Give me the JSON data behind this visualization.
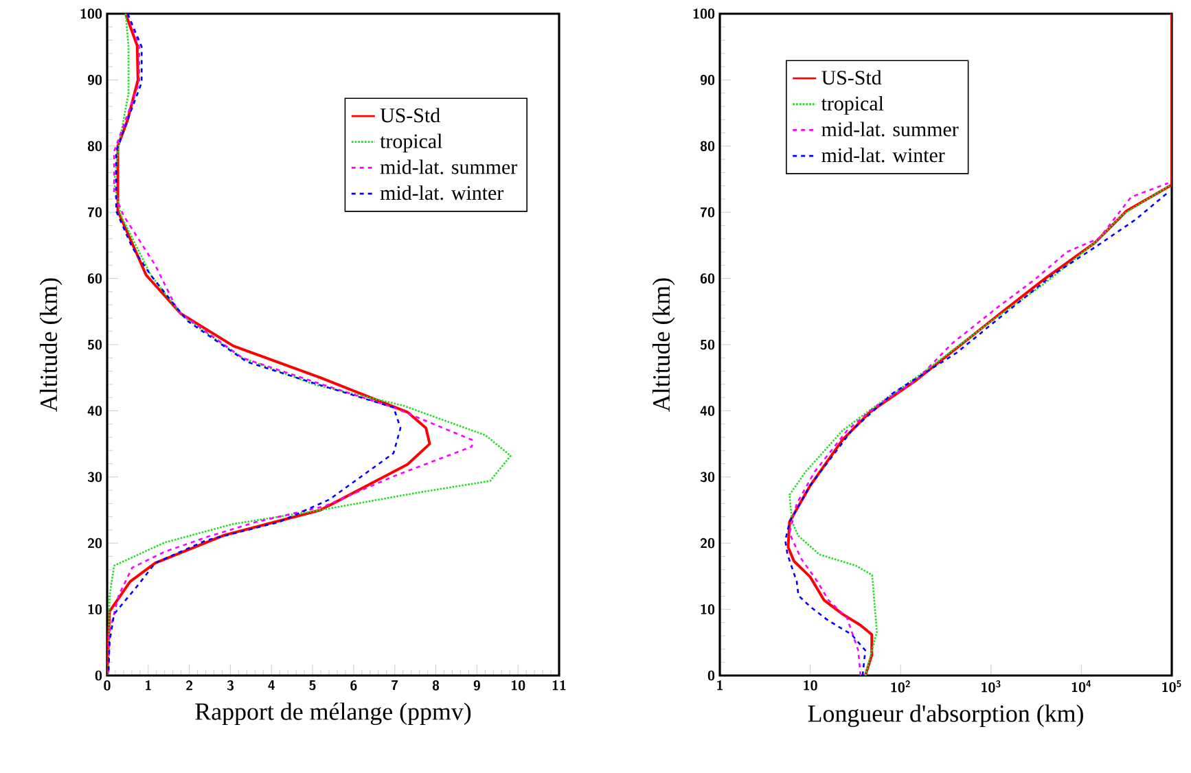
{
  "chart_data": [
    {
      "type": "line",
      "xlabel": "Rapport de mélange  (ppmv)",
      "ylabel": "Altitude  (km)",
      "xlim": [
        0,
        11
      ],
      "ylim": [
        0,
        100
      ],
      "xticks": [
        0,
        1,
        2,
        3,
        4,
        5,
        6,
        7,
        8,
        9,
        10,
        11
      ],
      "yticks": [
        0,
        10,
        20,
        30,
        40,
        50,
        60,
        70,
        80,
        90,
        100
      ],
      "legend": "top right",
      "series": [
        {
          "name": "US-Std",
          "color": "#ff0000",
          "line_style": "solid",
          "x": [
            0.45,
            0.73,
            0.75,
            0.5,
            0.26,
            0.26,
            0.95,
            1.79,
            3.07,
            5.19,
            7.31,
            7.76,
            7.85,
            7.31,
            5.19,
            2.85,
            1.17,
            0.56,
            0.06,
            0
          ],
          "values": [
            100,
            95.2,
            90,
            84,
            80,
            70.2,
            60.5,
            54.7,
            49.8,
            45,
            39.8,
            37.4,
            35,
            31.9,
            25,
            21.2,
            17,
            14.2,
            9.7,
            0
          ]
        },
        {
          "name": "tropical",
          "color": "#22dd22",
          "line_style": "dotted",
          "x": [
            0.45,
            0.52,
            0.52,
            0.28,
            0.17,
            0.33,
            1.06,
            1.84,
            3.29,
            5.08,
            7.2,
            9.21,
            9.82,
            9.32,
            7.53,
            5.19,
            3.07,
            1.4,
            0.17,
            0.06,
            0.03
          ],
          "values": [
            100,
            95,
            88,
            80,
            74.4,
            69.6,
            60.5,
            54.3,
            48,
            43.9,
            40.8,
            36.3,
            33.2,
            29.4,
            27.6,
            25,
            22.9,
            20.1,
            16.6,
            12.1,
            0
          ]
        },
        {
          "name": "mid-lat. summer",
          "color": "#ff00ff",
          "line_style": "dashed",
          "x": [
            0.5,
            0.78,
            0.78,
            0.45,
            0.17,
            0.17,
            0.39,
            1.17,
            1.73,
            3.29,
            5.08,
            6.97,
            8.88,
            8.88,
            6.97,
            5.3,
            3.63,
            2.51,
            1.4,
            0.61,
            0.28,
            0.06,
            0.03
          ],
          "values": [
            100,
            95,
            89.6,
            84,
            79.2,
            73,
            69.6,
            62,
            55,
            48,
            44.3,
            40.5,
            35.6,
            34.6,
            30.1,
            25.6,
            23.2,
            21.1,
            18.7,
            16.3,
            12.1,
            6.6,
            0
          ]
        },
        {
          "name": "mid-lat. winter",
          "color": "#0000ff",
          "line_style": "dashed",
          "x": [
            0.5,
            0.84,
            0.84,
            0.5,
            0.22,
            0.22,
            0.61,
            1.06,
            1.95,
            3.4,
            4.97,
            6.97,
            7.14,
            6.97,
            5.41,
            4.19,
            2.4,
            1.17,
            0.73,
            0.17,
            0.06,
            0.03
          ],
          "values": [
            100,
            95,
            89.6,
            84,
            79.2,
            70.2,
            64.7,
            60.5,
            53.6,
            47.4,
            44.3,
            40.5,
            37.4,
            33.6,
            26.6,
            23.2,
            20.4,
            17,
            13.5,
            9.3,
            5.2,
            0
          ]
        }
      ]
    },
    {
      "type": "line",
      "xlabel": "Longueur d'absorption  (km)",
      "ylabel": "Altitude  (km)",
      "log": "x",
      "xlim": [
        1,
        100000
      ],
      "ylim": [
        0,
        100
      ],
      "xticks": [
        1,
        10,
        {
          "value": 100,
          "label": "10$^{2}$"
        },
        {
          "value": 1000,
          "label": "10$^{3}$"
        },
        {
          "value": 10000,
          "label": "10$^{4}$"
        },
        {
          "value": 100000,
          "label": "10$^{5}$"
        }
      ],
      "yticks": [
        0,
        10,
        20,
        30,
        40,
        50,
        60,
        70,
        80,
        90,
        100
      ],
      "legend": "top left",
      "series": [
        {
          "name": "US-Std",
          "color": "#ff0000",
          "line_style": "solid",
          "x": [
            40.7,
            48,
            48,
            36,
            22.7,
            14.2,
            10,
            6.6,
            5.7,
            5.9,
            10,
            22.7,
            45.7,
            148,
            420,
            1350,
            3890,
            14100,
            31600,
            96000,
            100000,
            100000
          ],
          "values": [
            0,
            3.1,
            6.2,
            7.6,
            9.3,
            11.4,
            14.9,
            17.3,
            19.4,
            23.2,
            28.7,
            35.6,
            39.8,
            44.6,
            49.5,
            55,
            59.9,
            65.4,
            70.2,
            74,
            74.1,
            100
          ]
        },
        {
          "name": "tropical",
          "color": "#22dd22",
          "line_style": "dotted",
          "x": [
            40.7,
            54.6,
            48.4,
            32,
            12.6,
            7.4,
            6.3,
            5.9,
            8.9,
            22.7,
            45.7,
            186,
            475,
            1200,
            3890,
            14100,
            28200,
            96000
          ],
          "values": [
            0,
            6.6,
            15.2,
            16.6,
            18.3,
            21.1,
            23.2,
            27.3,
            30.8,
            37,
            40.1,
            46,
            50.2,
            54.3,
            59.2,
            65.4,
            69.6,
            74.1
          ]
        },
        {
          "name": "mid-lat. summer",
          "color": "#ff00ff",
          "line_style": "dashed",
          "x": [
            36,
            34,
            25.5,
            15.9,
            12,
            7.9,
            5.9,
            7.1,
            11.2,
            25.5,
            51,
            148,
            373,
            1200,
            3090,
            6920,
            15800,
            35500,
            91000
          ],
          "values": [
            0,
            3.8,
            8.7,
            11.4,
            14.2,
            17.7,
            21.5,
            26,
            30.8,
            37,
            40.5,
            44.6,
            50.2,
            55.7,
            59.9,
            64,
            66.1,
            72.3,
            74.4
          ]
        },
        {
          "name": "mid-lat. winter",
          "color": "#0000ff",
          "line_style": "dashed",
          "x": [
            38,
            40.7,
            28.7,
            15.9,
            10,
            7.4,
            7.1,
            5.6,
            5.3,
            5.9,
            10,
            28.7,
            81,
            420,
            1510,
            4900,
            14100,
            39800,
            91000
          ],
          "values": [
            0,
            3.8,
            6.2,
            8.3,
            10.4,
            12.1,
            14.2,
            18.3,
            20.4,
            23.2,
            28.7,
            37,
            42.6,
            48.8,
            55,
            60.6,
            64.7,
            68.9,
            73
          ]
        }
      ]
    }
  ]
}
